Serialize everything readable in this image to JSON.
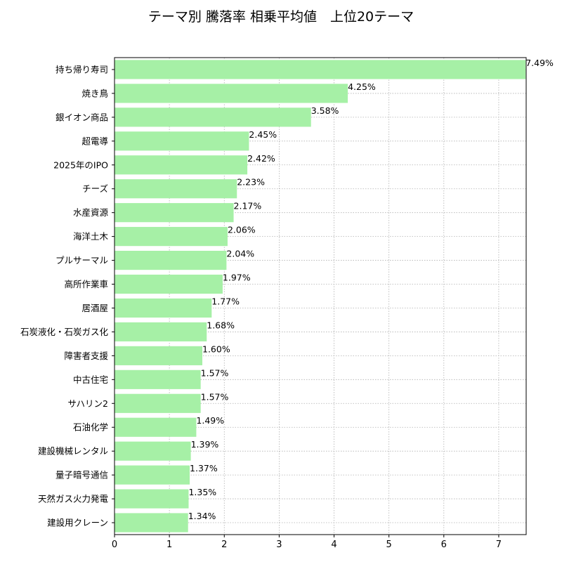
{
  "chart_data": {
    "type": "bar",
    "orientation": "horizontal",
    "title": "テーマ別 騰落率 相乗平均値　上位20テーマ",
    "xlabel": "",
    "ylabel": "",
    "categories": [
      "持ち帰り寿司",
      "焼き鳥",
      "銀イオン商品",
      "超電導",
      "2025年のIPO",
      "チーズ",
      "水産資源",
      "海洋土木",
      "プルサーマル",
      "高所作業車",
      "居酒屋",
      "石炭液化・石炭ガス化",
      "障害者支援",
      "中古住宅",
      "サハリン2",
      "石油化学",
      "建設機械レンタル",
      "量子暗号通信",
      "天然ガス火力発電",
      "建設用クレーン"
    ],
    "values": [
      7.49,
      4.25,
      3.58,
      2.45,
      2.42,
      2.23,
      2.17,
      2.06,
      2.04,
      1.97,
      1.77,
      1.68,
      1.6,
      1.57,
      1.57,
      1.49,
      1.39,
      1.37,
      1.35,
      1.34
    ],
    "value_labels": [
      "7.49%",
      "4.25%",
      "3.58%",
      "2.45%",
      "2.42%",
      "2.23%",
      "2.17%",
      "2.06%",
      "2.04%",
      "1.97%",
      "1.77%",
      "1.68%",
      "1.60%",
      "1.57%",
      "1.57%",
      "1.49%",
      "1.39%",
      "1.37%",
      "1.35%",
      "1.34%"
    ],
    "xticks": [
      "0",
      "1",
      "2",
      "3",
      "4",
      "5",
      "6",
      "7"
    ],
    "xlim": [
      0,
      7.5
    ],
    "grid": true,
    "bar_color": "#a6f0a6",
    "grid_color": "#b0b0b0",
    "axis_color": "#000000"
  }
}
